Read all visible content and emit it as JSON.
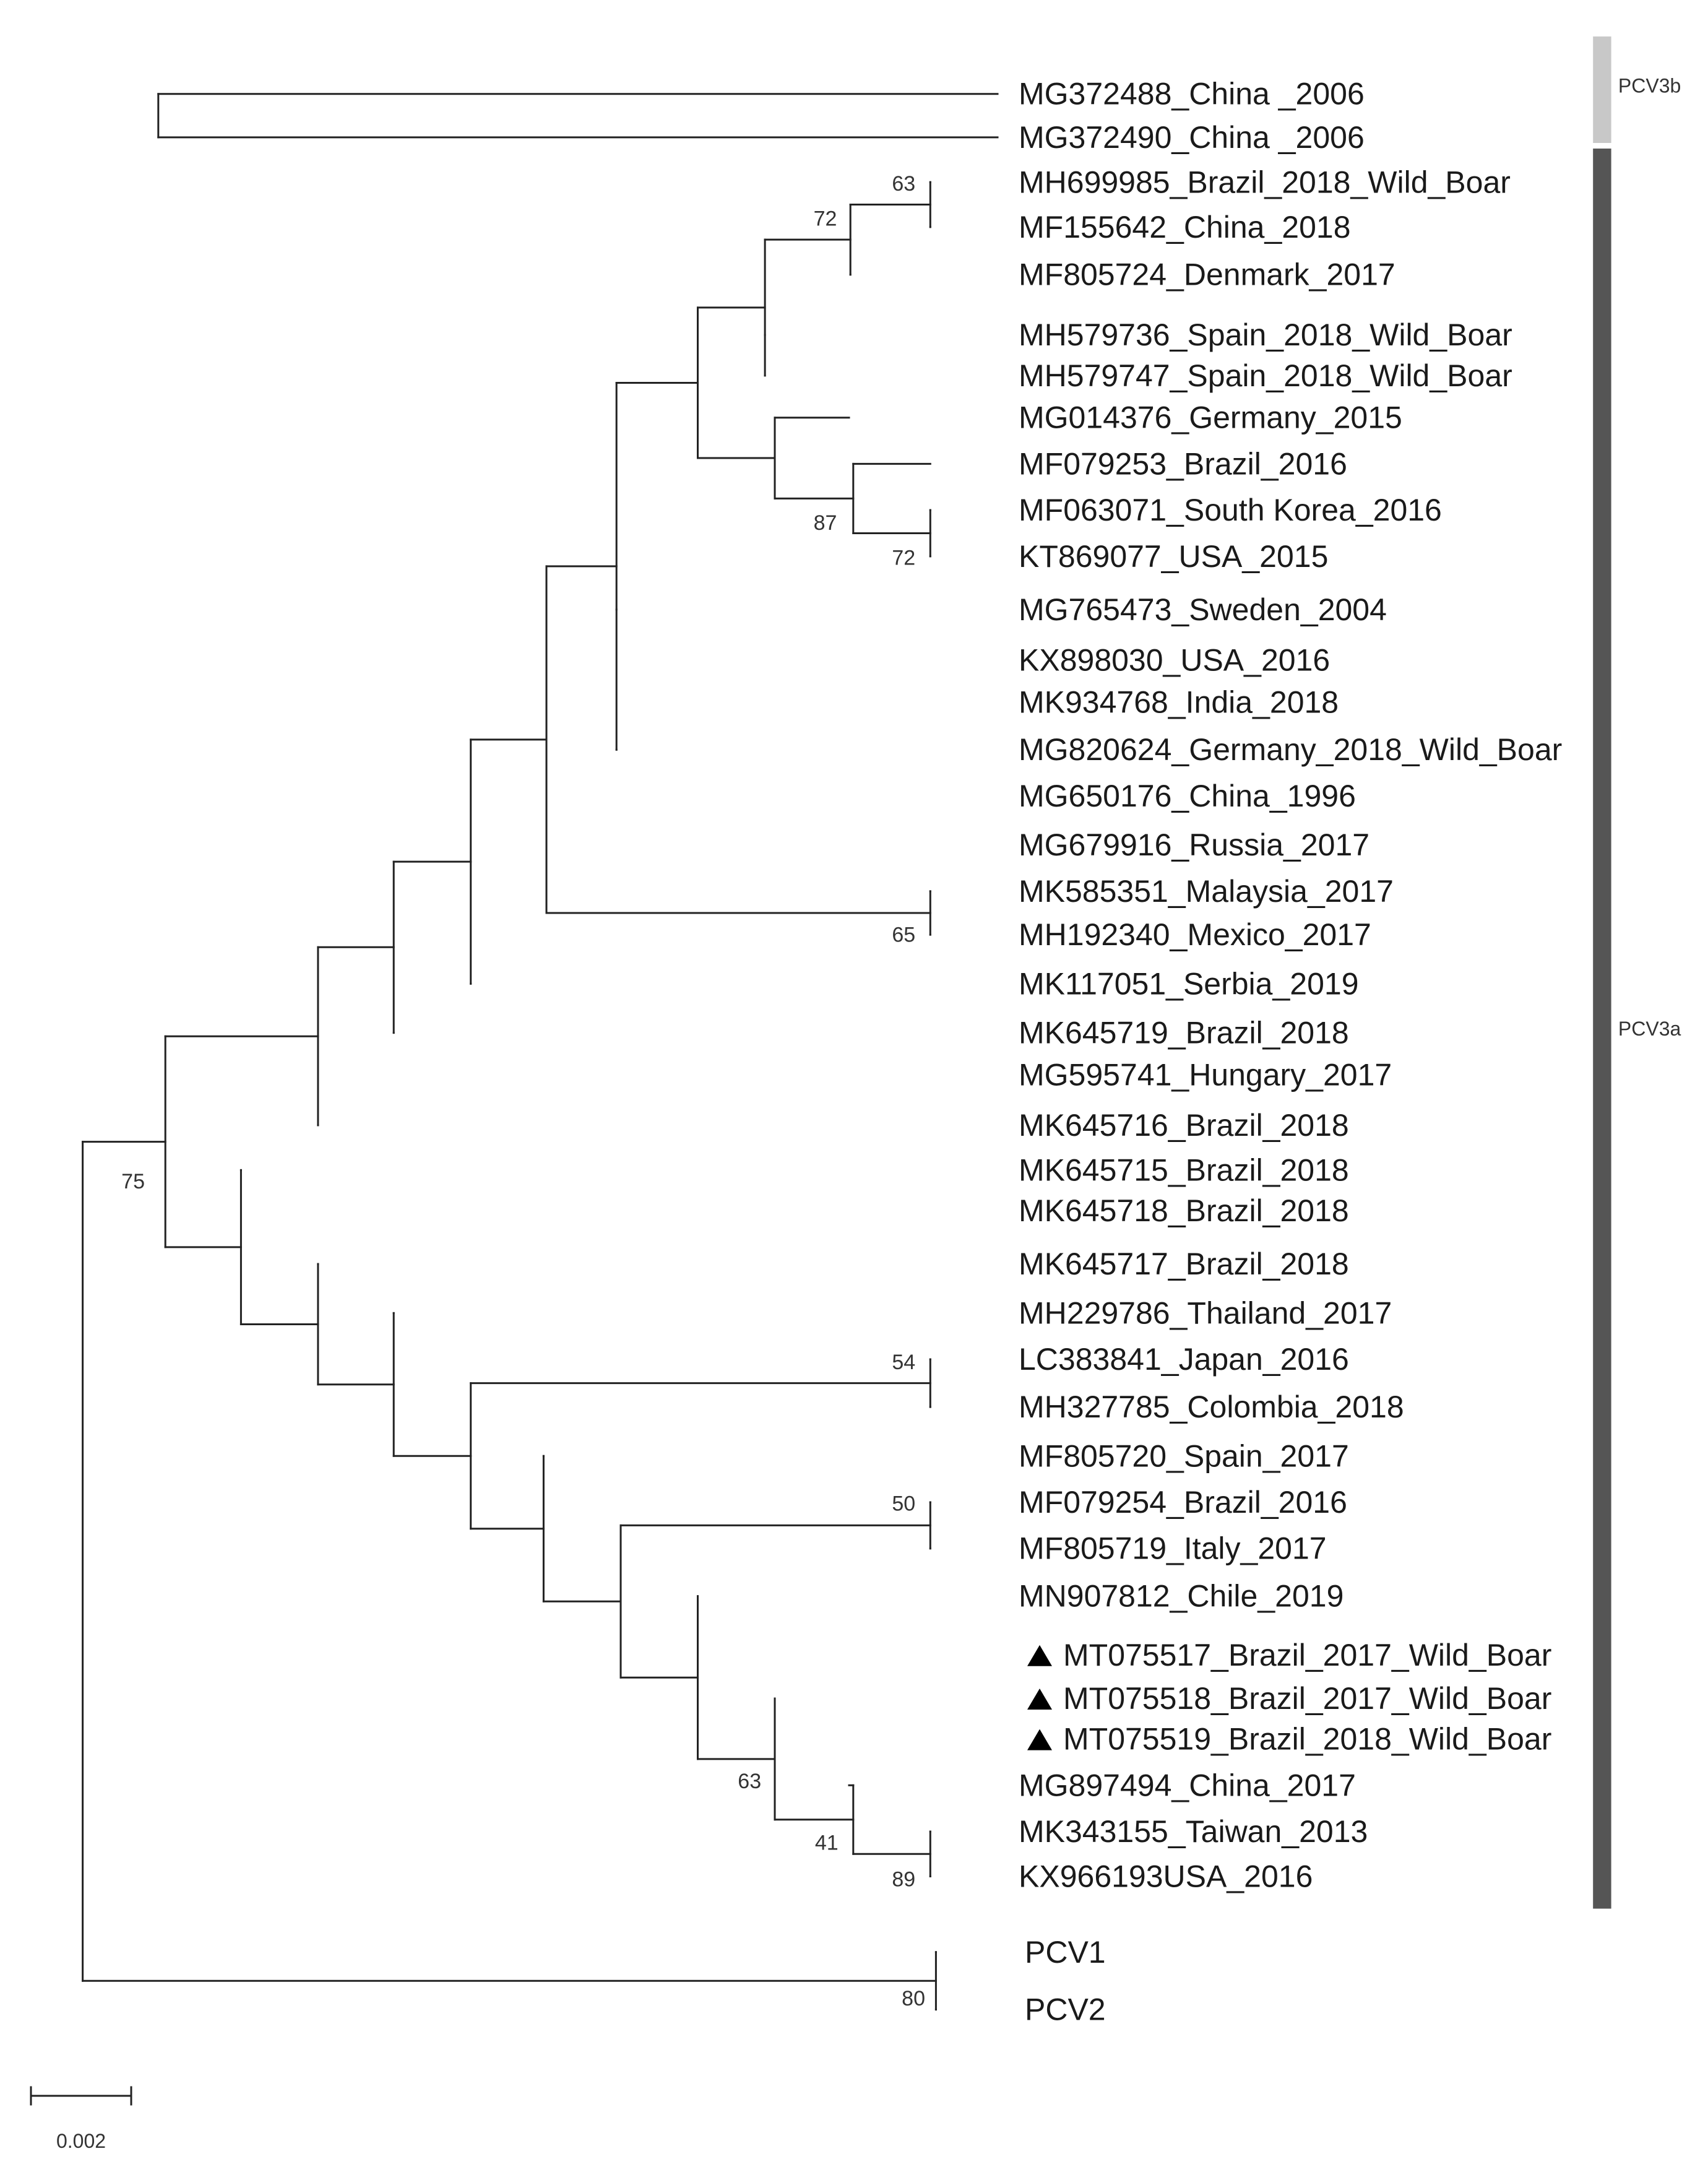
{
  "figure": {
    "type": "phylogenetic_tree",
    "scale_bar_label": "0.002",
    "colors": {
      "branch": "#222222",
      "text": "#1a1a1a",
      "pcv3b_bar": "#c8c8c8",
      "pcv3a_bar": "#555555",
      "marker": "#000000"
    }
  },
  "taxa": [
    {
      "label": "MG372488_China _2006",
      "marker": ""
    },
    {
      "label": "MG372490_China _2006",
      "marker": ""
    },
    {
      "label": "MH699985_Brazil_2018_Wild_Boar",
      "marker": ""
    },
    {
      "label": "MF155642_China_2018",
      "marker": ""
    },
    {
      "label": "MF805724_Denmark_2017",
      "marker": ""
    },
    {
      "label": "MH579736_Spain_2018_Wild_Boar",
      "marker": ""
    },
    {
      "label": "MH579747_Spain_2018_Wild_Boar",
      "marker": ""
    },
    {
      "label": "MG014376_Germany_2015",
      "marker": ""
    },
    {
      "label": "MF079253_Brazil_2016",
      "marker": ""
    },
    {
      "label": "MF063071_South Korea_2016",
      "marker": ""
    },
    {
      "label": "KT869077_USA_2015",
      "marker": ""
    },
    {
      "label": "MG765473_Sweden_2004",
      "marker": ""
    },
    {
      "label": "KX898030_USA_2016",
      "marker": ""
    },
    {
      "label": "MK934768_India_2018",
      "marker": ""
    },
    {
      "label": "MG820624_Germany_2018_Wild_Boar",
      "marker": ""
    },
    {
      "label": "MG650176_China_1996",
      "marker": ""
    },
    {
      "label": "MG679916_Russia_2017",
      "marker": ""
    },
    {
      "label": "MK585351_Malaysia_2017",
      "marker": ""
    },
    {
      "label": "MH192340_Mexico_2017",
      "marker": ""
    },
    {
      "label": "MK117051_Serbia_2019",
      "marker": ""
    },
    {
      "label": "MK645719_Brazil_2018",
      "marker": ""
    },
    {
      "label": "MG595741_Hungary_2017",
      "marker": ""
    },
    {
      "label": "MK645716_Brazil_2018",
      "marker": ""
    },
    {
      "label": "MK645715_Brazil_2018",
      "marker": ""
    },
    {
      "label": "MK645718_Brazil_2018",
      "marker": ""
    },
    {
      "label": "MK645717_Brazil_2018",
      "marker": ""
    },
    {
      "label": "MH229786_Thailand_2017",
      "marker": ""
    },
    {
      "label": "LC383841_Japan_2016",
      "marker": ""
    },
    {
      "label": "MH327785_Colombia_2018",
      "marker": ""
    },
    {
      "label": "MF805720_Spain_2017",
      "marker": ""
    },
    {
      "label": "MF079254_Brazil_2016",
      "marker": ""
    },
    {
      "label": "MF805719_Italy_2017",
      "marker": ""
    },
    {
      "label": "MN907812_Chile_2019",
      "marker": ""
    },
    {
      "label": "MT075517_Brazil_2017_Wild_Boar",
      "marker": "triangle"
    },
    {
      "label": "MT075518_Brazil_2017_Wild_Boar",
      "marker": "triangle"
    },
    {
      "label": "MT075519_Brazil_2018_Wild_Boar",
      "marker": "triangle"
    },
    {
      "label": "MG897494_China_2017",
      "marker": ""
    },
    {
      "label": "MK343155_Taiwan_2013",
      "marker": ""
    },
    {
      "label": "KX966193USA_2016",
      "marker": ""
    },
    {
      "label": "PCV1",
      "marker": ""
    },
    {
      "label": "PCV2",
      "marker": ""
    }
  ],
  "bootstrap": [
    "63",
    "72",
    "87",
    "72",
    "65",
    "75",
    "54",
    "50",
    "63",
    "41",
    "89",
    "80"
  ],
  "clades": [
    {
      "label": "PCV3b",
      "color": "#c8c8c8"
    },
    {
      "label": "PCV3a",
      "color": "#555555"
    }
  ]
}
